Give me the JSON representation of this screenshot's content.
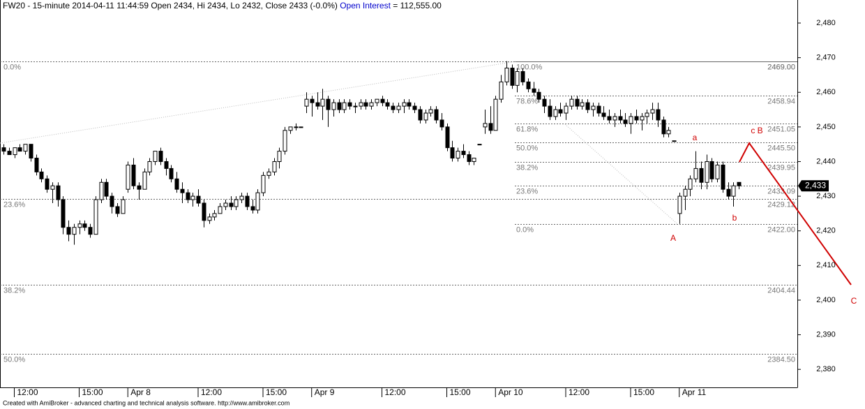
{
  "chart_data": {
    "type": "candlestick",
    "title": "FW20 - 15-minute 2014-04-11 11:44:59 Open 2434, Hi 2434, Lo 2432, Close 2433 (-0.0%)",
    "oi_label": "Open Interest",
    "oi_sep": "=",
    "open_interest": {
      "value": 112555,
      "label": "112,555.00"
    },
    "footer": "Created with AmiBroker - advanced charting and technical analysis software. http://www.amibroker.com",
    "annotations": [
      "a",
      "b",
      "c B",
      "A",
      "C"
    ],
    "up_color": "#ffffff",
    "down_color": "#000000",
    "ylim": [
      2374.8,
      2486.65
    ],
    "yticks": [
      {
        "value": 2380,
        "label": "2,380"
      },
      {
        "value": 2390,
        "label": "2,390"
      },
      {
        "value": 2400,
        "label": "2,400"
      },
      {
        "value": 2410,
        "label": "2,410"
      },
      {
        "value": 2420,
        "label": "2,420"
      },
      {
        "value": 2430,
        "label": "2,430"
      },
      {
        "value": 2440,
        "label": "2,440"
      },
      {
        "value": 2450,
        "label": "2,450"
      },
      {
        "value": 2460,
        "label": "2,460"
      },
      {
        "value": 2470,
        "label": "2,470"
      },
      {
        "value": 2480,
        "label": "2,480"
      }
    ],
    "last_price": {
      "value": 2433,
      "label": "2,433"
    },
    "fib_left": [
      {
        "pct": "0.0%",
        "value": 2469,
        "label": "2469.00"
      },
      {
        "pct": "23.6%",
        "value": 2429.12,
        "label": "2429.12"
      },
      {
        "pct": "38.2%",
        "value": 2404.44,
        "label": "2404.44"
      },
      {
        "pct": "50.0%",
        "value": 2384.5,
        "label": "2384.50"
      }
    ],
    "fib_right": [
      {
        "pct": "100.0%",
        "value": 2469,
        "label": "2469.00"
      },
      {
        "pct": "78.6%",
        "value": 2458.94,
        "label": "2458.94"
      },
      {
        "pct": "61.8%",
        "value": 2451.05,
        "label": "2451.05"
      },
      {
        "pct": "50.0%",
        "value": 2445.5,
        "label": "2445.50"
      },
      {
        "pct": "38.2%",
        "value": 2439.95,
        "label": "2439.95"
      },
      {
        "pct": "23.6%",
        "value": 2433.09,
        "label": "2433.09"
      },
      {
        "pct": "0.0%",
        "value": 2422,
        "label": "2422.00"
      }
    ],
    "categories": [
      null,
      null,
      "12:00",
      null,
      null,
      null,
      null,
      null,
      null,
      null,
      null,
      null,
      null,
      null,
      "15:00",
      null,
      null,
      null,
      null,
      null,
      null,
      null,
      null,
      "Apr 8",
      null,
      null,
      null,
      null,
      null,
      null,
      null,
      null,
      null,
      null,
      null,
      null,
      "12:00",
      null,
      null,
      null,
      null,
      null,
      null,
      null,
      null,
      null,
      null,
      null,
      "15:00",
      null,
      null,
      null,
      null,
      null,
      null,
      null,
      null,
      "Apr 9",
      null,
      null,
      null,
      null,
      null,
      null,
      null,
      null,
      null,
      null,
      null,
      null,
      "12:00",
      null,
      null,
      null,
      null,
      null,
      null,
      null,
      null,
      null,
      null,
      null,
      "15:00",
      null,
      null,
      null,
      null,
      null,
      null,
      null,
      null,
      "Apr 10",
      null,
      null,
      null,
      null,
      null,
      null,
      null,
      null,
      null,
      null,
      null,
      null,
      "12:00",
      null,
      null,
      null,
      null,
      null,
      null,
      null,
      null,
      null,
      null,
      null,
      "15:00",
      null,
      null,
      null,
      null,
      null,
      null,
      null,
      null,
      "Apr 11",
      null,
      null,
      null,
      null,
      null,
      null,
      null,
      null,
      null,
      null,
      null
    ],
    "candles": [
      [
        2444,
        2445,
        2442,
        2443
      ],
      [
        2443,
        2444,
        2442,
        2442
      ],
      [
        2442,
        2444,
        2441,
        2444
      ],
      [
        2444,
        2445,
        2443,
        2443
      ],
      [
        2443,
        2445,
        2442,
        2445
      ],
      [
        2445,
        2445,
        2440,
        2441
      ],
      [
        2441,
        2442,
        2436,
        2437
      ],
      [
        2437,
        2438,
        2434,
        2435
      ],
      [
        2435,
        2436,
        2431,
        2432
      ],
      [
        2432,
        2434,
        2428,
        2433
      ],
      [
        2433,
        2434,
        2427,
        2429
      ],
      [
        2429,
        2430,
        2419,
        2421
      ],
      [
        2421,
        2423,
        2417,
        2419
      ],
      [
        2419,
        2422,
        2416,
        2421
      ],
      [
        2421,
        2423,
        2419,
        2422
      ],
      [
        2422,
        2423,
        2420,
        2421
      ],
      [
        2421,
        2422,
        2418,
        2419
      ],
      [
        2419,
        2430,
        2419,
        2429
      ],
      [
        2429,
        2435,
        2428,
        2434
      ],
      [
        2434,
        2435,
        2429,
        2430
      ],
      [
        2430,
        2431,
        2425,
        2427
      ],
      [
        2427,
        2428,
        2424,
        2425
      ],
      [
        2425,
        2430,
        2425,
        2429
      ],
      [
        2432,
        2440,
        2431,
        2439
      ],
      [
        2439,
        2441,
        2432,
        2433
      ],
      [
        2433,
        2434,
        2429,
        2432
      ],
      [
        2432,
        2438,
        2432,
        2437
      ],
      [
        2437,
        2441,
        2436,
        2440
      ],
      [
        2440,
        2443,
        2439,
        2443
      ],
      [
        2443,
        2444,
        2439,
        2440
      ],
      [
        2440,
        2441,
        2436,
        2438
      ],
      [
        2438,
        2439,
        2434,
        2435
      ],
      [
        2435,
        2437,
        2431,
        2432
      ],
      [
        2432,
        2434,
        2428,
        2431
      ],
      [
        2431,
        2432,
        2428,
        2429
      ],
      [
        2429,
        2431,
        2427,
        2430
      ],
      [
        2430,
        2432,
        2427,
        2428
      ],
      [
        2428,
        2429,
        2421,
        2423
      ],
      [
        2423,
        2425,
        2422,
        2424
      ],
      [
        2424,
        2426,
        2423,
        2425
      ],
      [
        2425,
        2428,
        2425,
        2427
      ],
      [
        2427,
        2429,
        2426,
        2428
      ],
      [
        2428,
        2430,
        2426,
        2427
      ],
      [
        2427,
        2430,
        2426,
        2429
      ],
      [
        2429,
        2431,
        2428,
        2430
      ],
      [
        2430,
        2431,
        2426,
        2427
      ],
      [
        2427,
        2429,
        2425,
        2426
      ],
      [
        2426,
        2432,
        2425,
        2431
      ],
      [
        2431,
        2437,
        2430,
        2436
      ],
      [
        2436,
        2438,
        2435,
        2437
      ],
      [
        2437,
        2441,
        2436,
        2440
      ],
      [
        2440,
        2444,
        2438,
        2443
      ],
      [
        2443,
        2450,
        2442,
        2449
      ],
      [
        2449,
        2450,
        2448,
        2450
      ],
      [
        2450,
        2451,
        2449,
        2450
      ],
      [
        2450,
        2450,
        2450,
        2450
      ],
      [
        2456,
        2460,
        2454,
        2458
      ],
      [
        2458,
        2459,
        2453,
        2457
      ],
      [
        2457,
        2460,
        2455,
        2456
      ],
      [
        2456,
        2461,
        2452,
        2458
      ],
      [
        2458,
        2459,
        2450,
        2455
      ],
      [
        2455,
        2458,
        2453,
        2457
      ],
      [
        2457,
        2458,
        2454,
        2455
      ],
      [
        2455,
        2458,
        2454,
        2457
      ],
      [
        2457,
        2458,
        2455,
        2456
      ],
      [
        2456,
        2457,
        2454,
        2456
      ],
      [
        2456,
        2458,
        2455,
        2457
      ],
      [
        2457,
        2458,
        2455,
        2456
      ],
      [
        2456,
        2458,
        2455,
        2457
      ],
      [
        2457,
        2458,
        2456,
        2458
      ],
      [
        2458,
        2459,
        2456,
        2457
      ],
      [
        2457,
        2458,
        2455,
        2456
      ],
      [
        2456,
        2457,
        2454,
        2455
      ],
      [
        2455,
        2457,
        2454,
        2456
      ],
      [
        2456,
        2458,
        2454,
        2457
      ],
      [
        2457,
        2458,
        2455,
        2456
      ],
      [
        2456,
        2457,
        2454,
        2455
      ],
      [
        2455,
        2456,
        2451,
        2452
      ],
      [
        2452,
        2455,
        2451,
        2454
      ],
      [
        2454,
        2456,
        2453,
        2455
      ],
      [
        2455,
        2456,
        2451,
        2452
      ],
      [
        2452,
        2454,
        2449,
        2450
      ],
      [
        2450,
        2451,
        2443,
        2444
      ],
      [
        2444,
        2446,
        2440,
        2441
      ],
      [
        2441,
        2444,
        2440,
        2443
      ],
      [
        2443,
        2445,
        2441,
        2442
      ],
      [
        2442,
        2443,
        2439,
        2440
      ],
      [
        2440,
        2441,
        2439,
        2441
      ],
      [
        2445,
        2445,
        2445,
        2445
      ],
      [
        2450,
        2455,
        2448,
        2451
      ],
      [
        2451,
        2456,
        2448,
        2449
      ],
      [
        2449,
        2459,
        2449,
        2458
      ],
      [
        2458,
        2465,
        2457,
        2463
      ],
      [
        2463,
        2469,
        2462,
        2467
      ],
      [
        2467,
        2468,
        2461,
        2462
      ],
      [
        2462,
        2467,
        2460,
        2466
      ],
      [
        2466,
        2467,
        2462,
        2463
      ],
      [
        2463,
        2464,
        2460,
        2461
      ],
      [
        2461,
        2463,
        2459,
        2460
      ],
      [
        2460,
        2461,
        2457,
        2458
      ],
      [
        2458,
        2459,
        2454,
        2456
      ],
      [
        2456,
        2458,
        2452,
        2453
      ],
      [
        2453,
        2456,
        2452,
        2455
      ],
      [
        2455,
        2457,
        2453,
        2454
      ],
      [
        2454,
        2457,
        2452,
        2456
      ],
      [
        2456,
        2459,
        2455,
        2458
      ],
      [
        2458,
        2459,
        2455,
        2456
      ],
      [
        2456,
        2458,
        2455,
        2457
      ],
      [
        2457,
        2458,
        2454,
        2455
      ],
      [
        2455,
        2457,
        2453,
        2456
      ],
      [
        2456,
        2457,
        2453,
        2454
      ],
      [
        2454,
        2456,
        2452,
        2453
      ],
      [
        2453,
        2455,
        2451,
        2452
      ],
      [
        2452,
        2454,
        2450,
        2453
      ],
      [
        2453,
        2455,
        2451,
        2452
      ],
      [
        2452,
        2454,
        2450,
        2451
      ],
      [
        2451,
        2454,
        2448,
        2453
      ],
      [
        2453,
        2455,
        2451,
        2452
      ],
      [
        2452,
        2454,
        2449,
        2453
      ],
      [
        2453,
        2455,
        2451,
        2454
      ],
      [
        2454,
        2457,
        2452,
        2455
      ],
      [
        2455,
        2457,
        2450,
        2452
      ],
      [
        2452,
        2453,
        2447,
        2448
      ],
      [
        2448,
        2450,
        2447,
        2449
      ],
      [
        2446,
        2446,
        2446,
        2446
      ],
      [
        2425,
        2431,
        2422,
        2430
      ],
      [
        2430,
        2433,
        2426,
        2432
      ],
      [
        2432,
        2436,
        2430,
        2435
      ],
      [
        2435,
        2443,
        2434,
        2438
      ],
      [
        2438,
        2440,
        2432,
        2434
      ],
      [
        2434,
        2442,
        2432,
        2440
      ],
      [
        2440,
        2441,
        2434,
        2435
      ],
      [
        2435,
        2440,
        2434,
        2439
      ],
      [
        2439,
        2440,
        2431,
        2432
      ],
      [
        2432,
        2434,
        2429,
        2430
      ],
      [
        2430,
        2434,
        2427,
        2433
      ],
      [
        2434,
        2434,
        2432,
        2433
      ]
    ]
  }
}
